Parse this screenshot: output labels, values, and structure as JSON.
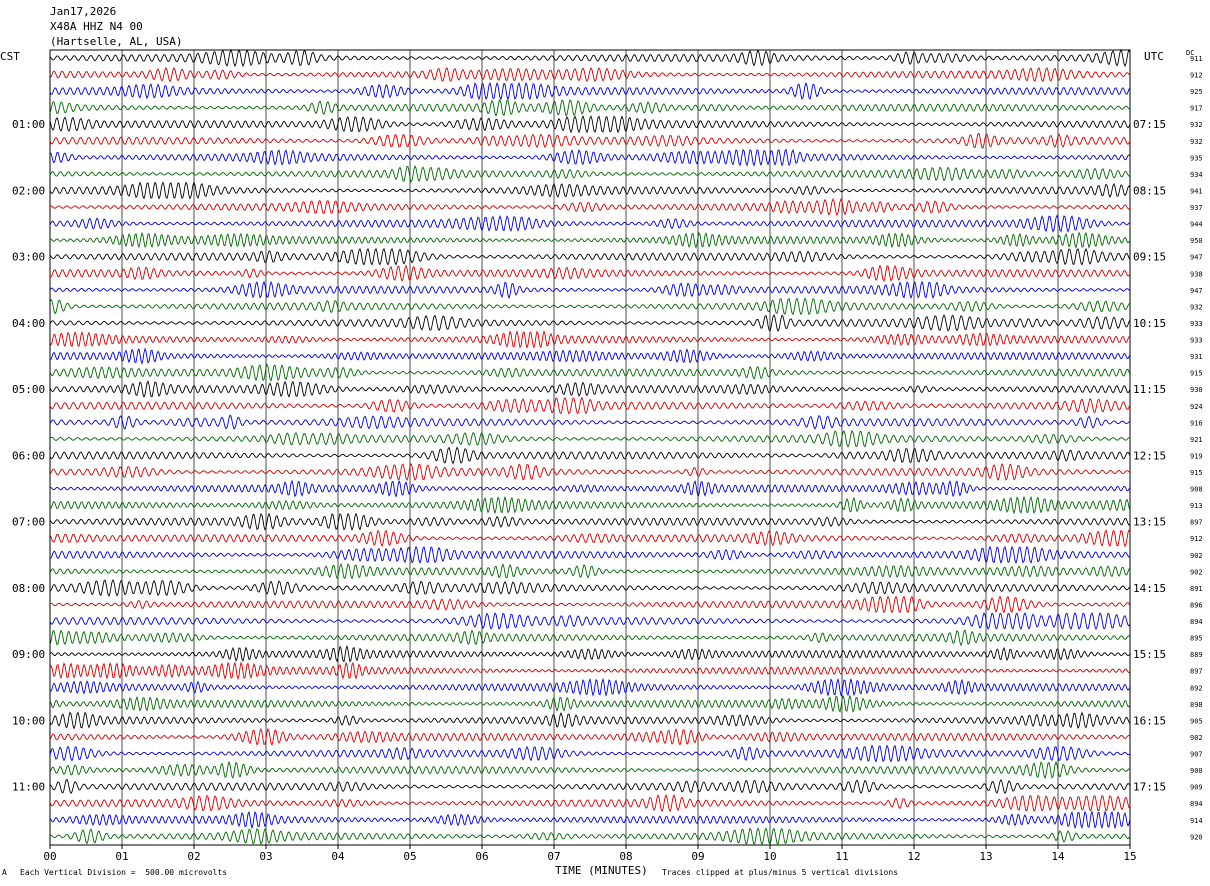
{
  "header": {
    "date": "Jan17,2026",
    "station": "X48A HHZ N4 00",
    "location": "(Hartselle, AL, USA)"
  },
  "left_tz": "CST",
  "right_tz": "UTC",
  "dc_label": "DC",
  "footer": {
    "scale_note": "Each Vertical Division =  500.00 microvolts",
    "xlabel": "TIME (MINUTES)",
    "clip_note": "Traces clipped at plus/minus 5 vertical divisions",
    "corner_mark": "A"
  },
  "chart_data": {
    "type": "line",
    "title": "X48A HHZ N4 00",
    "xlabel": "TIME (MINUTES)",
    "xlim": [
      0,
      15
    ],
    "x_ticks": [
      "00",
      "01",
      "02",
      "03",
      "04",
      "05",
      "06",
      "07",
      "08",
      "09",
      "10",
      "11",
      "12",
      "13",
      "14",
      "15"
    ],
    "left_hour_labels": [
      "01:00",
      "02:00",
      "03:00",
      "04:00",
      "05:00",
      "06:00",
      "07:00",
      "08:00",
      "09:00",
      "10:00",
      "11:00"
    ],
    "right_hour_labels": [
      "07:15",
      "08:15",
      "09:15",
      "10:15",
      "11:15",
      "12:15",
      "13:15",
      "14:15",
      "15:15",
      "16:15",
      "17:15"
    ],
    "trace_count": 48,
    "trace_colors": [
      "#000000",
      "#cc0000",
      "#0000cc",
      "#006600"
    ],
    "dc_offsets": [
      911,
      912,
      925,
      917,
      932,
      932,
      935,
      934,
      941,
      937,
      944,
      950,
      947,
      938,
      947,
      932,
      933,
      933,
      931,
      915,
      930,
      924,
      916,
      921,
      919,
      915,
      908,
      913,
      897,
      912,
      902,
      902,
      891,
      896,
      894,
      895,
      889,
      897,
      892,
      898,
      905,
      902,
      907,
      900,
      909,
      894,
      914,
      920
    ],
    "grid": true
  }
}
